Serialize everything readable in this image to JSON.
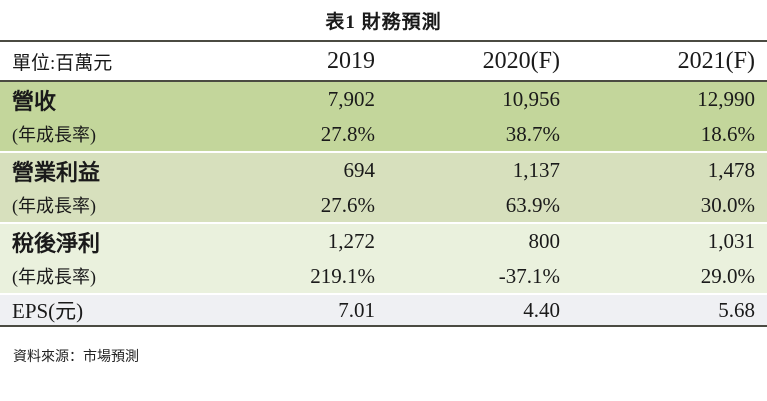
{
  "title": "表1 財務預測",
  "table": {
    "unit_label": "單位:百萬元",
    "columns": [
      "2019",
      "2020(F)",
      "2021(F)"
    ],
    "rows": [
      {
        "label": "營收",
        "values": [
          "7,902",
          "10,956",
          "12,990"
        ]
      },
      {
        "label": "(年成長率)",
        "values": [
          "27.8%",
          "38.7%",
          "18.6%"
        ]
      },
      {
        "label": "營業利益",
        "values": [
          "694",
          "1,137",
          "1,478"
        ]
      },
      {
        "label": "(年成長率)",
        "values": [
          "27.6%",
          "63.9%",
          "30.0%"
        ]
      },
      {
        "label": "稅後淨利",
        "values": [
          "1,272",
          "800",
          "1,031"
        ]
      },
      {
        "label": "(年成長率)",
        "values": [
          "219.1%",
          "-37.1%",
          "29.0%"
        ]
      },
      {
        "label": "EPS(元)",
        "values": [
          "7.01",
          "4.40",
          "5.68"
        ]
      }
    ]
  },
  "source": "資料來源：市場預測",
  "colors": {
    "band_green1": "#c3d69b",
    "band_green2": "#d7e0bd",
    "band_green3": "#eaf1dd",
    "band_gray": "#eff0f3",
    "rule": "#4b4b42"
  },
  "chart_data": {
    "type": "table",
    "title": "表1 財務預測",
    "unit": "百萬元",
    "categories": [
      "2019",
      "2020(F)",
      "2021(F)"
    ],
    "series": [
      {
        "name": "營收",
        "values": [
          7902,
          10956,
          12990
        ]
      },
      {
        "name": "營收 年成長率",
        "values": [
          "27.8%",
          "38.7%",
          "18.6%"
        ]
      },
      {
        "name": "營業利益",
        "values": [
          694,
          1137,
          1478
        ]
      },
      {
        "name": "營業利益 年成長率",
        "values": [
          "27.6%",
          "63.9%",
          "30.0%"
        ]
      },
      {
        "name": "稅後淨利",
        "values": [
          1272,
          800,
          1031
        ]
      },
      {
        "name": "稅後淨利 年成長率",
        "values": [
          "219.1%",
          "-37.1%",
          "29.0%"
        ]
      },
      {
        "name": "EPS(元)",
        "values": [
          7.01,
          4.4,
          5.68
        ]
      }
    ],
    "source": "資料來源：市場預測"
  }
}
